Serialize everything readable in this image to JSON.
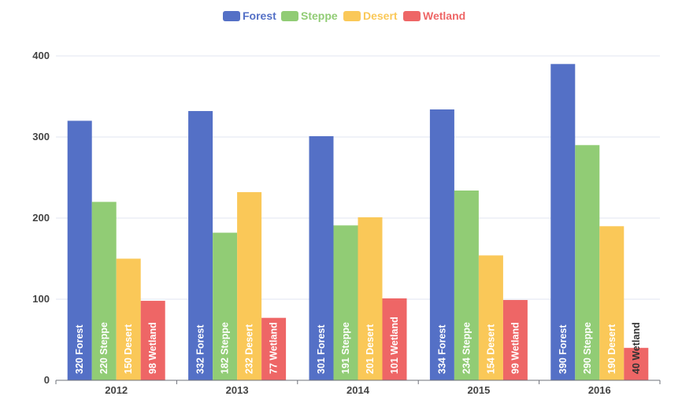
{
  "chart_data": {
    "type": "bar",
    "categories": [
      "2012",
      "2013",
      "2014",
      "2015",
      "2016"
    ],
    "series": [
      {
        "name": "Forest",
        "color": "#5470c6",
        "values": [
          320,
          332,
          301,
          334,
          390
        ]
      },
      {
        "name": "Steppe",
        "color": "#91cc75",
        "values": [
          220,
          182,
          191,
          234,
          290
        ]
      },
      {
        "name": "Desert",
        "color": "#fac858",
        "values": [
          150,
          232,
          201,
          154,
          190
        ]
      },
      {
        "name": "Wetland",
        "color": "#ee6666",
        "values": [
          98,
          77,
          101,
          99,
          40
        ]
      }
    ],
    "ylim": [
      0,
      400
    ],
    "yticks": [
      0,
      100,
      200,
      300,
      400
    ],
    "grid": true,
    "legend": "top-center",
    "data_labels": "inside-bottom-rotated"
  }
}
